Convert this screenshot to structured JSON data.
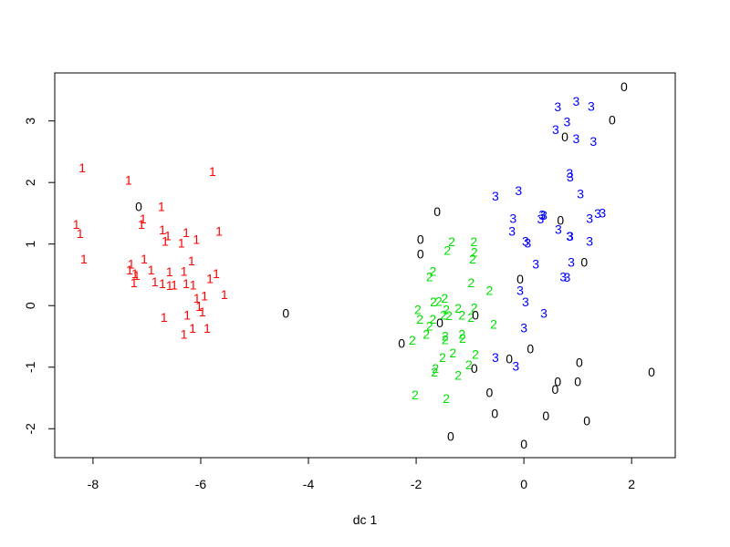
{
  "chart_data": {
    "type": "scatter",
    "xlabel": "dc 1",
    "xlim": [
      -8.71,
      2.81
    ],
    "ylim": [
      -2.47,
      3.78
    ],
    "xticks": [
      -8,
      -6,
      -4,
      -2,
      0,
      2
    ],
    "yticks": [
      -2,
      -1,
      0,
      1,
      2,
      3
    ],
    "series": [
      {
        "name": "1",
        "color": "#ff0000",
        "x": [
          -8.2,
          -7.34,
          -5.78,
          -6.73,
          -8.31,
          -8.24,
          -7.1,
          -7.07,
          -6.71,
          -6.61,
          -6.27,
          -6.08,
          -6.36,
          -6.66,
          -5.66,
          -8.17,
          -7.29,
          -7.05,
          -7.32,
          -7.22,
          -7.19,
          -6.92,
          -6.58,
          -6.31,
          -6.17,
          -5.71,
          -5.83,
          -7.24,
          -6.85,
          -6.71,
          -6.58,
          -6.49,
          -6.27,
          -6.14,
          -5.56,
          -5.93,
          -6.07,
          -6.03,
          -5.97,
          -6.25,
          -6.68,
          -6.15,
          -5.88,
          -6.31
        ],
        "values": [
          2.24,
          2.04,
          2.18,
          1.61,
          1.32,
          1.17,
          1.32,
          1.41,
          1.23,
          1.14,
          1.19,
          1.08,
          1.02,
          1.05,
          1.21,
          0.76,
          0.68,
          0.76,
          0.58,
          0.52,
          0.49,
          0.58,
          0.55,
          0.56,
          0.73,
          0.52,
          0.44,
          0.37,
          0.39,
          0.36,
          0.33,
          0.34,
          0.36,
          0.34,
          0.18,
          0.16,
          0.12,
          -0.01,
          -0.1,
          -0.15,
          -0.19,
          -0.37,
          -0.37,
          -0.46
        ]
      },
      {
        "name": "2",
        "color": "#00e000",
        "x": [
          -1.34,
          -0.93,
          -1.42,
          -0.92,
          -0.95,
          -1.69,
          -1.75,
          -0.98,
          -0.64,
          -1.47,
          -1.58,
          -1.97,
          -1.68,
          -1.44,
          -1.22,
          -0.92,
          -1.69,
          -1.93,
          -1.49,
          -1.39,
          -1.15,
          -0.98,
          -0.56,
          -1.75,
          -1.81,
          -1.46,
          -1.46,
          -1.15,
          -1.14,
          -2.07,
          -1.32,
          -1.51,
          -0.9,
          -1.02,
          -1.64,
          -1.66,
          -1.22,
          -2.02,
          -1.44
        ],
        "values": [
          1.04,
          1.04,
          0.9,
          0.87,
          0.76,
          0.56,
          0.47,
          0.37,
          0.25,
          0.12,
          0.07,
          -0.06,
          0.06,
          -0.06,
          -0.04,
          -0.03,
          -0.22,
          -0.22,
          -0.15,
          -0.16,
          -0.15,
          -0.19,
          -0.3,
          -0.33,
          -0.46,
          -0.49,
          -0.55,
          -0.46,
          -0.53,
          -0.56,
          -0.77,
          -0.84,
          -0.79,
          -0.96,
          -1.02,
          -1.08,
          -1.13,
          -1.45,
          -1.51
        ]
      },
      {
        "name": "3",
        "color": "#0000ff",
        "x": [
          0.63,
          0.97,
          1.25,
          0.8,
          0.59,
          0.97,
          1.29,
          0.85,
          0.86,
          1.05,
          -0.53,
          -0.1,
          -0.2,
          0.34,
          0.31,
          0.37,
          -0.22,
          0.03,
          0.07,
          0.64,
          0.85,
          0.86,
          1.22,
          1.37,
          1.46,
          1.22,
          0.22,
          0.88,
          0.8,
          0.73,
          -0.07,
          0.03,
          0.37,
          0.0,
          -0.53,
          -0.15
        ],
        "values": [
          3.23,
          3.32,
          3.24,
          2.99,
          2.86,
          2.71,
          2.67,
          2.15,
          2.09,
          1.82,
          1.78,
          1.87,
          1.42,
          1.48,
          1.41,
          1.47,
          1.21,
          1.05,
          1.02,
          1.24,
          1.13,
          1.13,
          1.42,
          1.5,
          1.51,
          1.05,
          0.68,
          0.71,
          0.46,
          0.47,
          0.25,
          0.06,
          -0.12,
          -0.36,
          -0.84,
          -0.98
        ]
      },
      {
        "name": "0",
        "color": "#000000",
        "x": [
          1.86,
          1.64,
          0.76,
          -7.15,
          -1.61,
          -1.92,
          -1.92,
          0.68,
          1.12,
          -0.07,
          -0.9,
          -1.56,
          -4.42,
          -2.27,
          0.12,
          -0.27,
          -0.92,
          1.03,
          2.37,
          0.63,
          1.0,
          -0.64,
          0.58,
          -0.54,
          0.41,
          1.17,
          -1.36,
          0.0
        ],
        "values": [
          3.56,
          3.02,
          2.74,
          1.61,
          1.53,
          1.08,
          0.84,
          1.39,
          0.71,
          0.43,
          -0.15,
          -0.28,
          -0.12,
          -0.61,
          -0.7,
          -0.86,
          -1.02,
          -0.92,
          -1.08,
          -1.23,
          -1.23,
          -1.41,
          -1.36,
          -1.75,
          -1.79,
          -1.87,
          -2.12,
          -2.25
        ]
      }
    ]
  }
}
